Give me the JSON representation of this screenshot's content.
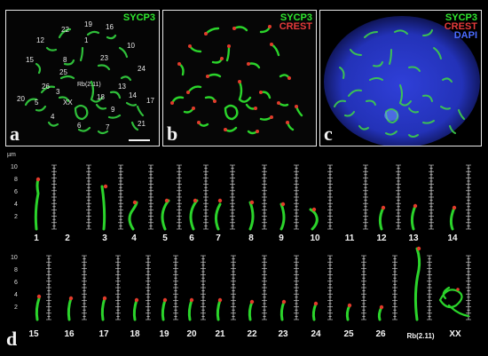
{
  "panel_a": {
    "letter": "a",
    "marker": "SYCP3",
    "chromosome_numbers": [
      "22",
      "19",
      "16",
      "12",
      "1",
      "10",
      "15",
      "8",
      "23",
      "25",
      "24",
      "Rb(2.11)",
      "26",
      "3",
      "13",
      "20",
      "5",
      "XX",
      "18",
      "14",
      "17",
      "4",
      "9",
      "6",
      "7",
      "21"
    ]
  },
  "panel_b": {
    "letter": "b",
    "marker_1": "SYCP3",
    "marker_2": "CREST"
  },
  "panel_c": {
    "letter": "c",
    "marker_1": "SYCP3",
    "marker_2": "CREST",
    "marker_3": "DAPI"
  },
  "panel_d": {
    "letter": "d",
    "unit": "µm",
    "y_ticks": [
      "10",
      "8",
      "6",
      "4",
      "2"
    ],
    "row_1_labels": [
      "1",
      "2",
      "3",
      "4",
      "5",
      "6",
      "7",
      "8",
      "9",
      "10",
      "11",
      "12",
      "13",
      "14"
    ],
    "row_2_labels": [
      "15",
      "16",
      "17",
      "18",
      "19",
      "20",
      "21",
      "22",
      "23",
      "24",
      "25",
      "26",
      "Rb(2.11)",
      "XX"
    ]
  },
  "colors": {
    "sycp3": "#2bd42b",
    "crest": "#e23b2b",
    "dapi": "#3040d0",
    "background": "#000000"
  }
}
